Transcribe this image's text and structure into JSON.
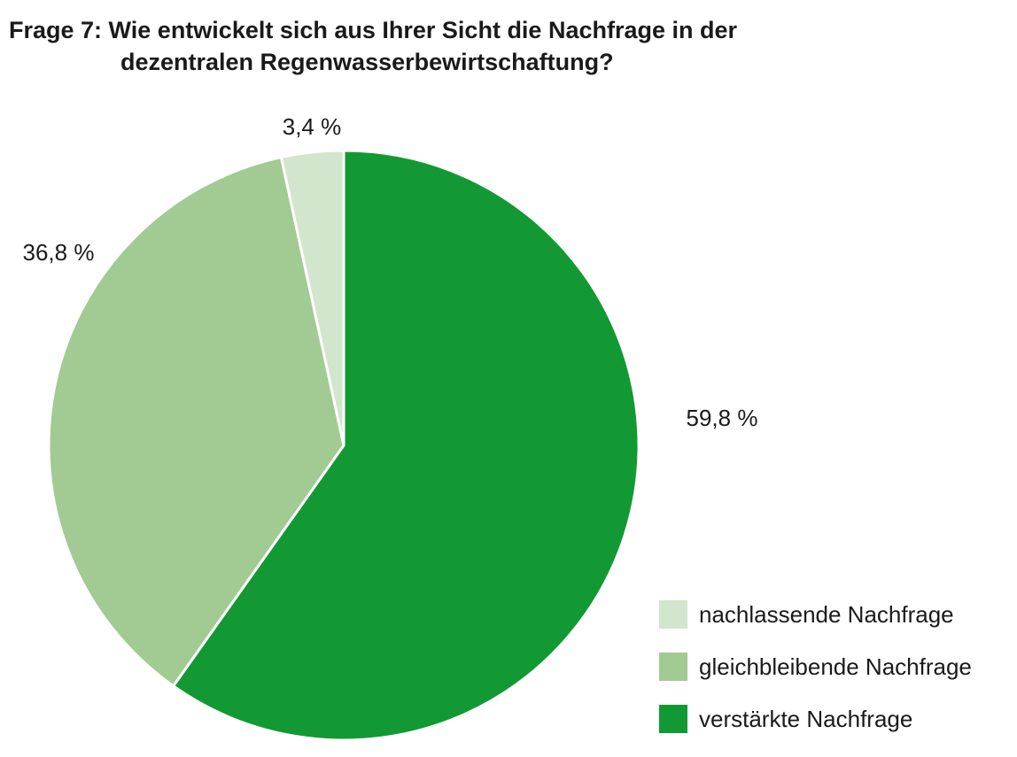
{
  "title": {
    "line1": "Frage 7: Wie entwickelt sich aus Ihrer Sicht die Nachfrage in der",
    "line2": "dezentralen Regenwasserbewirtschaftung?"
  },
  "chart_data": {
    "type": "pie",
    "title": "Frage 7: Wie entwickelt sich aus Ihrer Sicht die Nachfrage in der dezentralen Regenwasserbewirtschaftung?",
    "slices": [
      {
        "label": "verstärkte Nachfrage",
        "value": 59.8,
        "display": "59,8 %",
        "color": "#129934"
      },
      {
        "label": "gleichbleibende Nachfrage",
        "value": 36.8,
        "display": "36,8 %",
        "color": "#a2ca93"
      },
      {
        "label": "nachlassende Nachfrage",
        "value": 3.4,
        "display": "3,4 %",
        "color": "#d2e5cd"
      }
    ],
    "legend": {
      "position": "bottom-right",
      "entries": [
        "nachlassende Nachfrage",
        "gleichbleibende Nachfrage",
        "verstärkte Nachfrage"
      ]
    }
  }
}
